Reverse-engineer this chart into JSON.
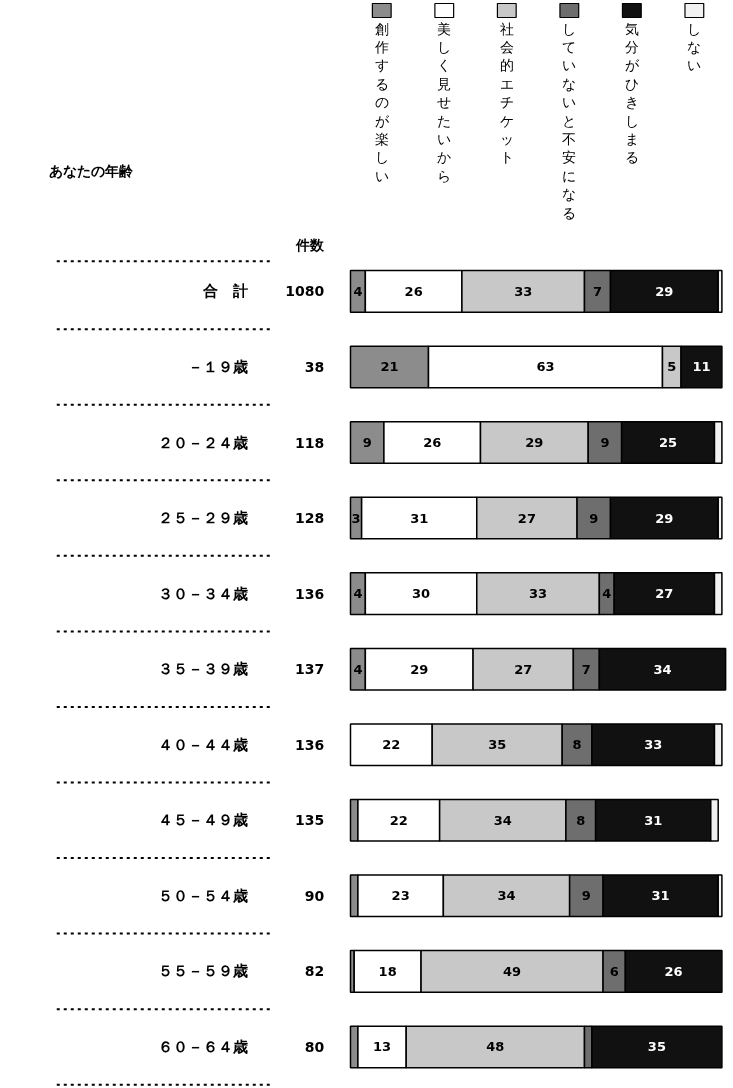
{
  "chart_data": {
    "type": "bar",
    "orientation": "horizontal",
    "stacked": true,
    "annotations": [
      "あなたの年齢"
    ],
    "y2label": "件数",
    "legend": "top",
    "tick_labels": false,
    "categories": [
      "合　計",
      "－１９歳",
      "２０－２４歳",
      "２５－２９歳",
      "３０－３４歳",
      "３５－３９歳",
      "４０－４４歳",
      "４５－４９歳",
      "５０－５４歳",
      "５５－５９歳",
      "６０－６４歳"
    ],
    "y2_categories": [
      "1080",
      "38",
      "118",
      "128",
      "136",
      "137",
      "136",
      "135",
      "90",
      "82",
      "80"
    ],
    "series": [
      {
        "name": "創作するのが楽しい",
        "color": "#8c8c8c",
        "values": [
          4,
          21,
          9,
          3,
          4,
          4,
          null,
          2,
          2,
          1,
          2
        ],
        "value_labels": [
          "4",
          "21",
          "9",
          "3",
          "4",
          "4",
          null,
          null,
          null,
          null,
          null
        ]
      },
      {
        "name": "美しく見せたいから",
        "color": "#ffffff",
        "values": [
          26,
          63,
          26,
          31,
          30,
          29,
          22,
          22,
          23,
          18,
          13
        ],
        "value_labels": [
          "26",
          "63",
          "26",
          "31",
          "30",
          "29",
          "22",
          "22",
          "23",
          "18",
          "13"
        ]
      },
      {
        "name": "社会的エチケット",
        "color": "#c8c8c8",
        "values": [
          33,
          5,
          29,
          27,
          33,
          27,
          35,
          34,
          34,
          49,
          48
        ],
        "value_labels": [
          "33",
          "5",
          "29",
          "27",
          "33",
          "27",
          "35",
          "34",
          "34",
          "49",
          "48"
        ]
      },
      {
        "name": "していないと不安になる",
        "color": "#6e6e6e",
        "values": [
          7,
          null,
          9,
          9,
          4,
          7,
          8,
          8,
          9,
          6,
          2
        ],
        "value_labels": [
          "7",
          null,
          "9",
          "9",
          "4",
          "7",
          "8",
          "8",
          "9",
          "6",
          null
        ]
      },
      {
        "name": "気分がひきしまる",
        "color": "#111111",
        "values": [
          29,
          11,
          25,
          29,
          27,
          34,
          33,
          31,
          31,
          26,
          35
        ],
        "value_labels": [
          "29",
          "11",
          "25",
          "29",
          "27",
          "34",
          "33",
          "31",
          "31",
          "26",
          "35"
        ]
      },
      {
        "name": "しない",
        "color": "#f2f2f2",
        "values": [
          1,
          null,
          2,
          1,
          2,
          null,
          2,
          2,
          1,
          null,
          null
        ]
      }
    ]
  }
}
